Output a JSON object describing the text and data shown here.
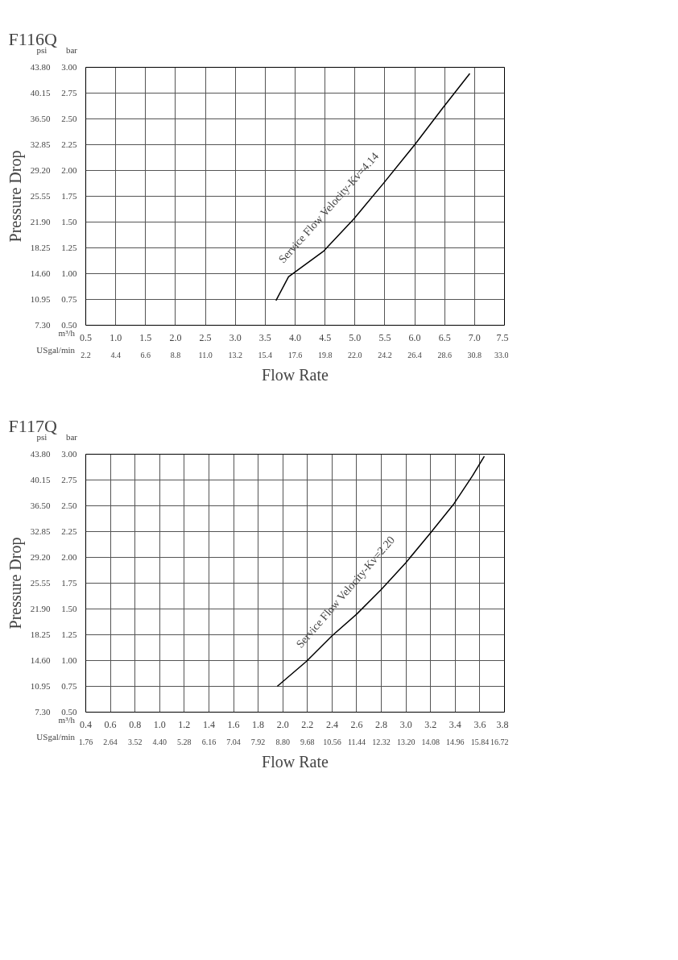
{
  "chart_data": [
    {
      "type": "line",
      "title": "F116Q",
      "ylabel": "Pressure Drop",
      "xlabel": "Flow Rate",
      "annotations": [
        "psi",
        "bar",
        "m³/h",
        "USgal/min",
        "Service Flow Velocity-Kv=4.14"
      ],
      "series": [
        {
          "axis": "y2",
          "color": "#000000",
          "x": [
            3.68,
            3.89,
            4.48,
            4.98,
            5.47,
            6.0,
            6.46,
            6.92
          ],
          "values": [
            0.74,
            0.97,
            1.22,
            1.53,
            1.87,
            2.25,
            2.6,
            2.94
          ]
        }
      ],
      "xlim": [
        0.5,
        7.5
      ],
      "xticks": [
        0.5,
        {
          "value": 1,
          "label": "1.0"
        },
        1.5,
        {
          "value": 2,
          "label": "2.0"
        },
        2.5,
        {
          "value": 3,
          "label": "3.0"
        },
        3.5,
        {
          "value": 4,
          "label": "4.0"
        },
        4.5,
        {
          "value": 5,
          "label": "5.0"
        },
        5.5,
        {
          "value": 6,
          "label": "6.0"
        },
        6.5,
        {
          "value": 7,
          "label": "7.0"
        },
        7.5
      ],
      "x2lim": [
        2.2,
        33.0
      ],
      "x2ticks": [
        2.2,
        4.4,
        6.6,
        8.8,
        {
          "value": 11,
          "label": "11.0"
        },
        13.2,
        15.4,
        17.6,
        19.8,
        {
          "value": 22,
          "label": "22.0"
        },
        24.2,
        26.4,
        28.6,
        30.8,
        {
          "value": 33,
          "label": "33.0"
        }
      ],
      "y2lim": [
        0.5,
        3.0
      ],
      "y2ticks": [
        {
          "value": 0.5,
          "label": "0.50"
        },
        0.75,
        {
          "value": 1,
          "label": "1.00"
        },
        1.25,
        {
          "value": 1.5,
          "label": "1.50"
        },
        1.75,
        {
          "value": 2,
          "label": "2.00"
        },
        2.25,
        {
          "value": 2.5,
          "label": "2.50"
        },
        2.75,
        {
          "value": 3,
          "label": "3.00"
        }
      ],
      "ylim": [
        7.3,
        43.8
      ],
      "yticks": [
        {
          "value": 7.3,
          "label": "7.30"
        },
        10.95,
        {
          "value": 14.6,
          "label": "14.60"
        },
        18.25,
        {
          "value": 21.9,
          "label": "21.90"
        },
        25.55,
        {
          "value": 29.2,
          "label": "29.20"
        },
        32.85,
        {
          "value": 36.5,
          "label": "36.50"
        },
        40.15,
        {
          "value": 43.8,
          "label": "43.80"
        }
      ],
      "grid": true
    },
    {
      "type": "line",
      "title": "F117Q",
      "ylabel": "Pressure Drop",
      "xlabel": "Flow Rate",
      "annotations": [
        "psi",
        "bar",
        "m³/h",
        "USgal/min",
        "Service Flow Velocity-Kv=2.20"
      ],
      "series": [
        {
          "axis": "y2",
          "color": "#000000",
          "x": [
            1.955,
            2.19,
            2.4,
            2.6,
            2.8,
            3.0,
            3.195,
            3.39,
            3.54,
            3.636
          ],
          "values": [
            0.75,
            0.99,
            1.24,
            1.45,
            1.69,
            1.95,
            2.23,
            2.52,
            2.79,
            2.98
          ]
        }
      ],
      "xlim": [
        0.4,
        3.8
      ],
      "xticks": [
        0.4,
        0.6,
        0.8,
        {
          "value": 1,
          "label": "1.0"
        },
        1.2,
        1.4,
        1.6,
        1.8,
        {
          "value": 2,
          "label": "2.0"
        },
        2.2,
        2.4,
        2.6,
        2.8,
        {
          "value": 3,
          "label": "3.0"
        },
        3.2,
        3.4,
        3.6,
        3.8
      ],
      "x2lim": [
        1.76,
        16.72
      ],
      "x2ticks": [
        1.76,
        2.64,
        3.52,
        {
          "value": 4.4,
          "label": "4.40"
        },
        5.28,
        6.16,
        7.04,
        7.92,
        {
          "value": 8.8,
          "label": "8.80"
        },
        9.68,
        10.56,
        11.44,
        12.32,
        {
          "value": 13.2,
          "label": "13.20"
        },
        14.08,
        14.96,
        15.84,
        16.72
      ],
      "y2lim": [
        0.5,
        3.0
      ],
      "y2ticks": [
        {
          "value": 0.5,
          "label": "0.50"
        },
        0.75,
        {
          "value": 1,
          "label": "1.00"
        },
        1.25,
        {
          "value": 1.5,
          "label": "1.50"
        },
        1.75,
        {
          "value": 2,
          "label": "2.00"
        },
        2.25,
        {
          "value": 2.5,
          "label": "2.50"
        },
        2.75,
        {
          "value": 3,
          "label": "3.00"
        }
      ],
      "ylim": [
        7.3,
        43.8
      ],
      "yticks": [
        {
          "value": 7.3,
          "label": "7.30"
        },
        10.95,
        {
          "value": 14.6,
          "label": "14.60"
        },
        18.25,
        {
          "value": 21.9,
          "label": "21.90"
        },
        25.55,
        {
          "value": 29.2,
          "label": "29.20"
        },
        32.85,
        {
          "value": 36.5,
          "label": "36.50"
        },
        40.15,
        {
          "value": 43.8,
          "label": "43.80"
        }
      ],
      "grid": true
    }
  ]
}
